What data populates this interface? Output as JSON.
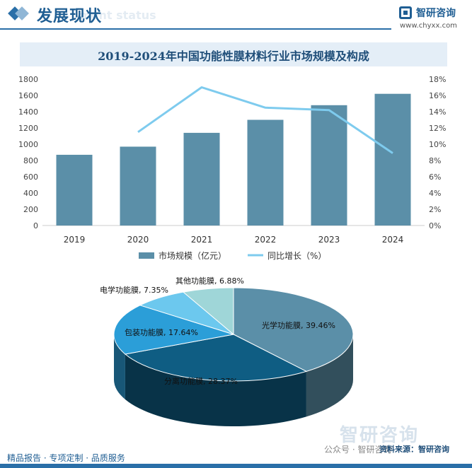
{
  "header": {
    "title": "发展现状",
    "subtitle": "ment status",
    "brand_name": "智研咨询",
    "brand_url": "www.chyxx.com"
  },
  "chart_data": [
    {
      "type": "bar",
      "title": "2019-2024年中国功能性膜材料行业市场规模及构成",
      "categories": [
        "2019",
        "2020",
        "2021",
        "2022",
        "2023",
        "2024"
      ],
      "series": [
        {
          "name": "市场规模（亿元）",
          "type": "bar",
          "axis": "left",
          "values": [
            870,
            970,
            1140,
            1300,
            1480,
            1620
          ]
        },
        {
          "name": "同比增长（%）",
          "type": "line",
          "axis": "right",
          "values": [
            null,
            11.5,
            17.0,
            14.5,
            14.2,
            8.9
          ]
        }
      ],
      "y_left": {
        "ticks": [
          "0",
          "200",
          "400",
          "600",
          "800",
          "1000",
          "1200",
          "1400",
          "1600",
          "1800"
        ],
        "ylim": [
          0,
          1800
        ]
      },
      "y_right": {
        "ticks": [
          "0%",
          "2%",
          "4%",
          "6%",
          "8%",
          "10%",
          "12%",
          "14%",
          "16%",
          "18%"
        ],
        "ylim": [
          0,
          18
        ]
      },
      "legend": "bottom",
      "colors": {
        "bar": "#5b8fa8",
        "line": "#7ecbee"
      }
    },
    {
      "type": "pie",
      "slices": [
        {
          "label": "光学功能膜, 39.46%",
          "value": 39.46,
          "color": "#5b8fa8"
        },
        {
          "label": "分离功能膜, 28.37%",
          "value": 28.37,
          "color": "#0f5d83"
        },
        {
          "label": "包装功能膜, 17.64%",
          "value": 17.64,
          "color": "#2b9ed8"
        },
        {
          "label": "电学功能膜, 7.35%",
          "value": 7.35,
          "color": "#6cc8ee"
        },
        {
          "label": "其他功能膜, 6.88%",
          "value": 6.88,
          "color": "#9fd6d8"
        }
      ]
    }
  ],
  "footer": {
    "text": "精品报告 · 专项定制 · 品质服务",
    "source": "资料来源：智研咨询",
    "wechat": "公众号 · 智研咨询",
    "watermark": "智研咨询"
  }
}
